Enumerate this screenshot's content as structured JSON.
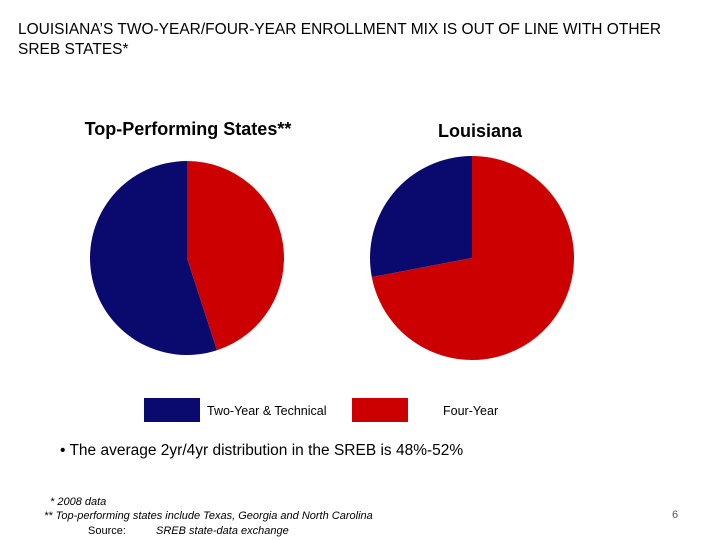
{
  "headline": "LOUISIANA’S TWO-YEAR/FOUR-YEAR ENROLLMENT MIX IS OUT OF LINE WITH OTHER SREB STATES*",
  "chart_data": [
    {
      "type": "pie",
      "title": "Top-Performing States**",
      "slices": [
        {
          "label": "Two-Year & Technical",
          "value": 55,
          "display": "55%",
          "color": "#0a0a6e"
        },
        {
          "label": "Four-Year",
          "value": 45,
          "display": "45%",
          "color": "#cc0000"
        }
      ]
    },
    {
      "type": "pie",
      "title": "Louisiana",
      "slices": [
        {
          "label": "Two-Year & Technical",
          "value": 28,
          "display": "28%",
          "color": "#0a0a6e"
        },
        {
          "label": "Four-Year",
          "value": 72,
          "display": "72%",
          "color": "#cc0000"
        }
      ]
    }
  ],
  "legend": {
    "placement": "bottom",
    "items": [
      {
        "label": "Two-Year & Technical",
        "color": "#0a0a6e"
      },
      {
        "label": "Four-Year",
        "color": "#cc0000"
      }
    ]
  },
  "bullet": "• The average 2yr/4yr distribution in the SREB is 48%-52%",
  "footnotes": {
    "data_year": "* 2008 data",
    "top_states": "** Top-performing states include Texas, Georgia and North Carolina",
    "source_label": "Source:",
    "source_text": "SREB state-data exchange"
  },
  "page_number": "6"
}
